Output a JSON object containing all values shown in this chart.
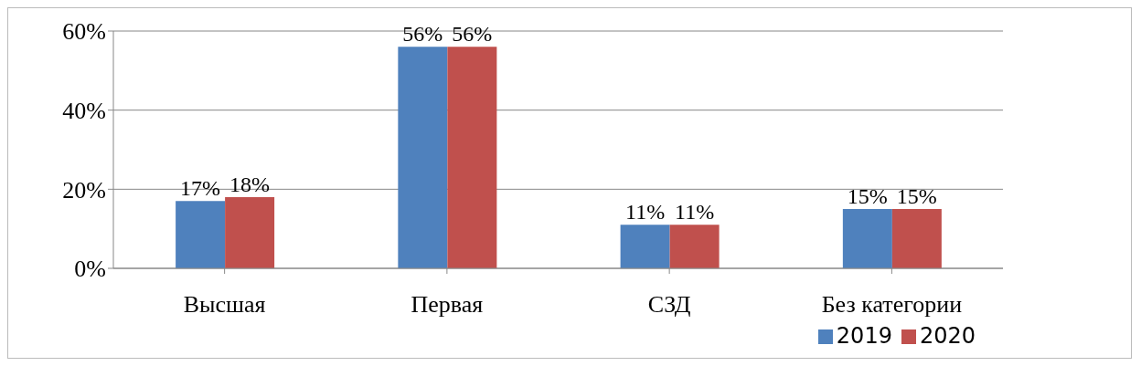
{
  "chart_data": {
    "type": "bar",
    "categories": [
      "Высшая",
      "Первая",
      "СЗД",
      "Без категории"
    ],
    "series": [
      {
        "name": "2019",
        "color": "#4f81bd",
        "values": [
          17,
          56,
          11,
          15
        ],
        "value_labels": [
          "17%",
          "56%",
          "11%",
          "15%"
        ]
      },
      {
        "name": "2020",
        "color": "#c0504d",
        "values": [
          18,
          56,
          11,
          15
        ],
        "value_labels": [
          "18%",
          "56%",
          "11%",
          "15%"
        ]
      }
    ],
    "ylim": [
      0,
      60
    ],
    "yticks": [
      {
        "value": 0,
        "label": "0%"
      },
      {
        "value": 20,
        "label": "20%"
      },
      {
        "value": 40,
        "label": "40%"
      },
      {
        "value": 60,
        "label": "60%"
      }
    ],
    "grid": "y",
    "legend": "bottom right"
  }
}
